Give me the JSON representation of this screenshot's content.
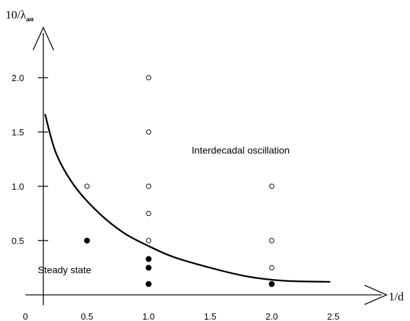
{
  "chart_data": {
    "type": "scatter",
    "title": "",
    "xlabel": "1/d",
    "ylabel_main": "10/λ",
    "ylabel_sub": "ao",
    "xlim": [
      0,
      2.9
    ],
    "ylim": [
      0,
      2.3
    ],
    "x_ticks": [
      "0",
      "0.5",
      "1.0",
      "1.5",
      "2.0",
      "2.5"
    ],
    "x_tick_values": [
      0,
      0.5,
      1.0,
      1.5,
      2.0,
      2.5
    ],
    "y_ticks": [
      "0.5",
      "1.0",
      "1.5",
      "2.0"
    ],
    "y_tick_values": [
      0.5,
      1.0,
      1.5,
      2.0
    ],
    "grid": false,
    "annotations": [
      {
        "name": "oscillation-region-label",
        "text": "Interdecadal oscillation",
        "x": 1.35,
        "y": 1.3
      },
      {
        "name": "steady-region-label",
        "text": "Steady state",
        "x": 0.1,
        "y": 0.2
      }
    ],
    "series": [
      {
        "marker": "open-circle",
        "points": [
          [
            0.5,
            1.0
          ],
          [
            1.0,
            2.0
          ],
          [
            1.0,
            1.5
          ],
          [
            1.0,
            1.0
          ],
          [
            1.0,
            0.75
          ],
          [
            1.0,
            0.5
          ],
          [
            2.0,
            1.0
          ],
          [
            2.0,
            0.5
          ],
          [
            2.0,
            0.25
          ]
        ]
      },
      {
        "marker": "filled-circle",
        "points": [
          [
            0.5,
            0.5
          ],
          [
            1.0,
            0.33
          ],
          [
            1.0,
            0.25
          ],
          [
            1.0,
            0.1
          ],
          [
            2.0,
            0.1
          ]
        ]
      }
    ],
    "boundary_curve": {
      "points": [
        [
          0.16,
          1.66
        ],
        [
          0.25,
          1.3
        ],
        [
          0.4,
          1.0
        ],
        [
          0.6,
          0.75
        ],
        [
          0.8,
          0.57
        ],
        [
          1.0,
          0.45
        ],
        [
          1.2,
          0.35
        ],
        [
          1.5,
          0.25
        ],
        [
          1.8,
          0.17
        ],
        [
          2.1,
          0.13
        ],
        [
          2.47,
          0.12
        ]
      ]
    }
  }
}
